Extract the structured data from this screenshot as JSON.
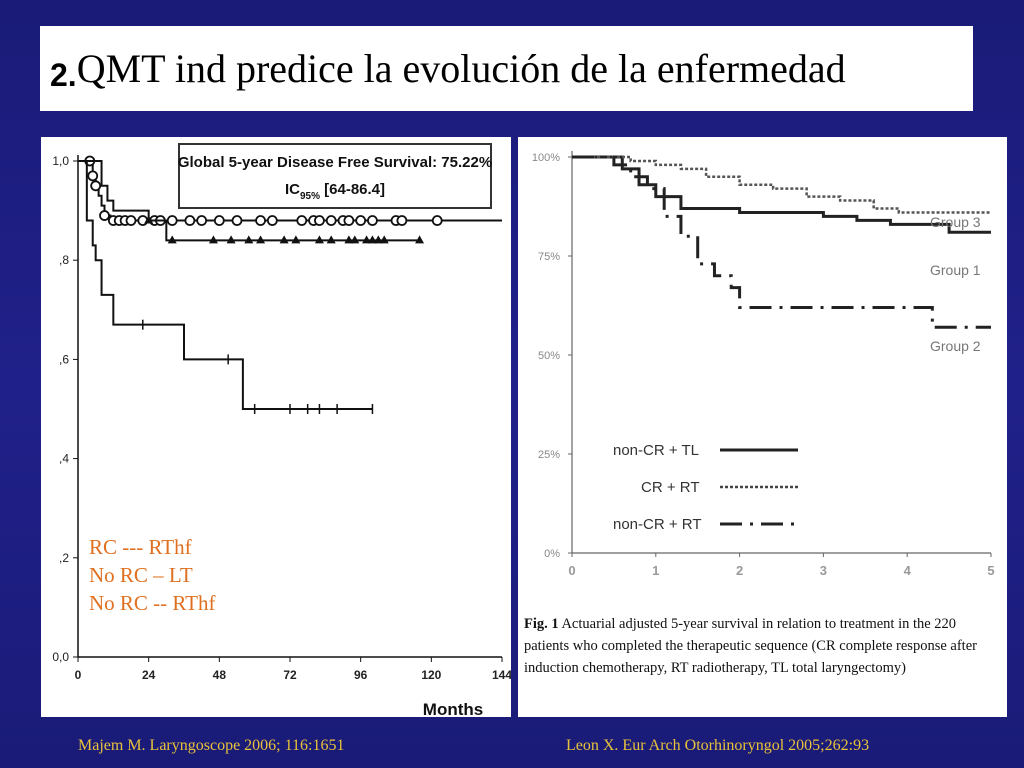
{
  "title": {
    "number": "2.",
    "text": "QMT ind predice la evolución de la enfermedad"
  },
  "left_chart": {
    "type": "line",
    "box_line1": "Global 5-year Disease Free Survival: 75.22%",
    "box_line2_pre": "IC",
    "box_line2_sub": "95%",
    "box_line2_post": " [64-86.4]",
    "xlabel": "Months",
    "x_ticks": [
      "0",
      "24",
      "48",
      "72",
      "96",
      "120",
      "144"
    ],
    "y_ticks": [
      "0,0",
      ",2",
      ",4",
      ",6",
      ",8",
      "1,0"
    ],
    "xlim": [
      0,
      144
    ],
    "ylim": [
      0,
      1
    ],
    "legend": [
      "RC --- RThf",
      "No RC – LT",
      "No RC -- RThf"
    ],
    "series": [
      {
        "name": "RC --- RThf",
        "x": [
          0,
          4,
          5,
          6,
          7,
          8,
          9,
          10,
          11,
          12,
          18,
          28,
          42,
          60,
          90,
          144
        ],
        "y": [
          1,
          1,
          0.97,
          0.95,
          0.93,
          0.91,
          0.89,
          0.89,
          0.88,
          0.88,
          0.88,
          0.88,
          0.88,
          0.88,
          0.88,
          0.88
        ],
        "censor": [
          4,
          5,
          6,
          9,
          12,
          14,
          16,
          18,
          22,
          26,
          28,
          32,
          38,
          42,
          48,
          54,
          62,
          66,
          76,
          80,
          82,
          86,
          90,
          92,
          96,
          100,
          108,
          110,
          122
        ]
      },
      {
        "name": "No RC – LT",
        "x": [
          0,
          6,
          8,
          10,
          12,
          16,
          24,
          30,
          36,
          60,
          80,
          116
        ],
        "y": [
          1,
          1,
          0.95,
          0.92,
          0.9,
          0.9,
          0.88,
          0.84,
          0.84,
          0.84,
          0.84,
          0.84
        ],
        "censor": [
          24,
          32,
          46,
          52,
          58,
          62,
          70,
          74,
          82,
          86,
          92,
          94,
          98,
          100,
          102,
          104,
          116
        ]
      },
      {
        "name": "No RC -- RThf",
        "x": [
          0,
          3,
          5,
          6,
          8,
          10,
          12,
          18,
          36,
          42,
          54,
          56,
          58,
          60,
          100
        ],
        "y": [
          1,
          0.88,
          0.83,
          0.8,
          0.73,
          0.73,
          0.67,
          0.67,
          0.6,
          0.6,
          0.6,
          0.5,
          0.5,
          0.5,
          0.5
        ],
        "censor": [
          22,
          51,
          60,
          72,
          78,
          82,
          88,
          100
        ]
      }
    ]
  },
  "right_chart": {
    "type": "line",
    "x_ticks": [
      "0",
      "1",
      "2",
      "3",
      "4",
      "5"
    ],
    "y_ticks": [
      "0%",
      "25%",
      "50%",
      "75%",
      "100%"
    ],
    "xlim": [
      0,
      5
    ],
    "ylim": [
      0,
      100
    ],
    "group_labels": [
      "Group 3",
      "Group 1",
      "Group 2"
    ],
    "legend": [
      "non-CR + TL",
      "CR + RT",
      "non-CR + RT"
    ],
    "caption_bold": "Fig. 1",
    "caption_text": " Actuarial adjusted 5-year survival in relation to treatment in the 220 patients who completed the therapeutic sequence (CR complete response after induction chemotherapy, RT radiotherapy, TL total laryngectomy)",
    "series": [
      {
        "name": "non-CR + TL",
        "x": [
          0,
          0.3,
          0.6,
          0.8,
          1.0,
          1.3,
          2.0,
          2.4,
          3.0,
          3.4,
          3.8,
          4.5,
          5.0
        ],
        "y": [
          100,
          100,
          97,
          93,
          90,
          87,
          86,
          86,
          85,
          84,
          83,
          81,
          81
        ]
      },
      {
        "name": "CR + RT",
        "x": [
          0,
          0.3,
          0.7,
          1.0,
          1.3,
          1.6,
          2.0,
          2.4,
          2.8,
          3.2,
          3.6,
          3.9,
          4.2,
          5.0
        ],
        "y": [
          100,
          100,
          99,
          98,
          97,
          95,
          93,
          92,
          90,
          89,
          87,
          86,
          86,
          86
        ]
      },
      {
        "name": "non-CR + RT",
        "x": [
          0,
          0.3,
          0.5,
          0.7,
          0.9,
          1.1,
          1.3,
          1.5,
          1.7,
          1.9,
          2.0,
          2.5,
          3.0,
          3.5,
          4.0,
          4.3,
          5.0
        ],
        "y": [
          100,
          100,
          98,
          95,
          92,
          85,
          80,
          73,
          70,
          67,
          62,
          62,
          62,
          62,
          62,
          57,
          57
        ]
      }
    ]
  },
  "citations": {
    "left": "Majem M. Laryngoscope 2006;  116:1651",
    "right": "Leon X. Eur Arch Otorhinoryngol 2005;262:93"
  },
  "colors": {
    "background": "#1d1d82",
    "legend_text": "#e07020",
    "citation_text": "#e8c23a"
  }
}
